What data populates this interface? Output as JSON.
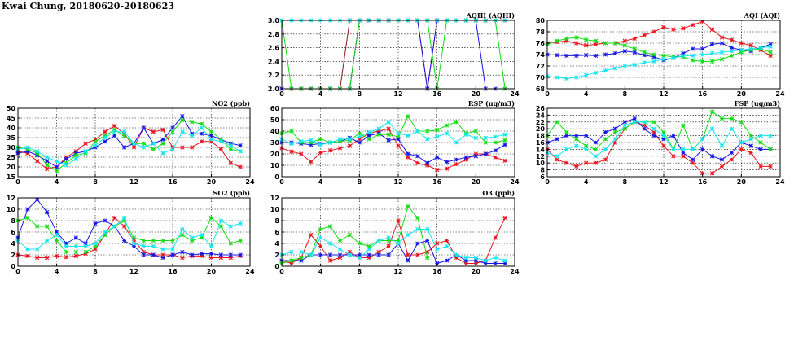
{
  "title": "Kwai Chung, 20180620-20180623",
  "colors": {
    "red": "#e8141e",
    "blue": "#1414e6",
    "green": "#14dc14",
    "cyan": "#14e6f0",
    "darkred": "#8b1a1a"
  },
  "chart_data": [
    {
      "id": "no2",
      "type": "line",
      "title": "NO2 (ppb)",
      "xlim": [
        0,
        24
      ],
      "ylim": [
        15,
        50
      ],
      "xticks": [
        0,
        4,
        8,
        12,
        16,
        20,
        24
      ],
      "yticks": [
        15,
        20,
        25,
        30,
        35,
        40,
        45,
        50
      ],
      "grid": true,
      "series": [
        {
          "color": "red",
          "values": [
            28,
            27,
            23,
            19,
            20,
            25,
            28,
            32,
            34,
            38,
            41,
            37,
            30,
            40,
            38,
            39,
            30,
            30,
            30,
            33,
            33,
            29,
            22,
            20
          ]
        },
        {
          "color": "blue",
          "values": [
            27,
            28,
            26,
            23,
            20,
            24,
            27,
            28,
            30,
            33,
            36,
            30,
            32,
            40,
            32,
            34,
            40,
            46,
            37,
            37,
            36,
            34,
            32,
            31
          ]
        },
        {
          "color": "green",
          "values": [
            30,
            29,
            27,
            21,
            18,
            22,
            26,
            27,
            33,
            36,
            39,
            36,
            32,
            32,
            29,
            32,
            38,
            44,
            43,
            42,
            38,
            34,
            29,
            28
          ]
        },
        {
          "color": "cyan",
          "values": [
            29,
            30,
            28,
            25,
            23,
            21,
            24,
            28,
            31,
            35,
            38,
            38,
            32,
            30,
            32,
            27,
            29,
            38,
            36,
            40,
            34,
            33,
            31,
            28
          ]
        }
      ]
    },
    {
      "id": "so2",
      "type": "line",
      "title": "SO2 (ppb)",
      "xlim": [
        0,
        24
      ],
      "ylim": [
        0,
        12
      ],
      "xticks": [
        0,
        4,
        8,
        12,
        16,
        20,
        24
      ],
      "yticks": [
        0,
        2,
        4,
        6,
        8,
        10,
        12
      ],
      "grid": true,
      "series": [
        {
          "color": "red",
          "values": [
            2,
            1.8,
            1.5,
            1.5,
            1.8,
            1.6,
            1.8,
            2.2,
            3,
            5.5,
            8.5,
            7,
            4.5,
            2.5,
            2,
            2,
            2,
            1.5,
            1.8,
            1.8,
            1.5,
            1.5,
            1.5,
            1.8
          ]
        },
        {
          "color": "blue",
          "values": [
            5,
            10,
            11.7,
            9.5,
            6,
            4,
            5,
            4,
            7.5,
            8,
            7,
            4.5,
            3.5,
            2,
            2,
            1.5,
            2,
            2.5,
            2,
            2.2,
            2.2,
            2,
            2,
            2
          ]
        },
        {
          "color": "green",
          "values": [
            8,
            8.5,
            7,
            7,
            4.5,
            2.5,
            2.5,
            2.5,
            3.5,
            5.5,
            7,
            8,
            5,
            4.5,
            4.5,
            4.5,
            4.5,
            5.5,
            4.5,
            5,
            8.5,
            7,
            4,
            4.5
          ]
        },
        {
          "color": "cyan",
          "values": [
            4.5,
            3,
            3,
            4.5,
            5.5,
            3.5,
            3.5,
            3.5,
            4,
            6,
            7,
            8.5,
            4,
            3.5,
            3.5,
            3,
            3,
            6.5,
            5,
            5.5,
            3.5,
            8,
            7,
            7.5
          ]
        }
      ]
    },
    {
      "id": "aqhi",
      "type": "line",
      "title": "AQHI (AQHI)",
      "xlim": [
        0,
        24
      ],
      "ylim": [
        2.0,
        3.0
      ],
      "xticks": [
        0,
        4,
        8,
        12,
        16,
        20,
        24
      ],
      "yticks": [
        2.0,
        2.2,
        2.4,
        2.6,
        2.8,
        3.0
      ],
      "grid": true,
      "series": [
        {
          "color": "red",
          "values": [
            2,
            2,
            2,
            2,
            2,
            2,
            2,
            2,
            3,
            3,
            3,
            3,
            3,
            3,
            3,
            2,
            3,
            3,
            3,
            3,
            3,
            3,
            3,
            3
          ]
        },
        {
          "color": "darkred",
          "values": [
            2,
            2,
            2,
            2,
            2,
            2,
            2,
            3,
            3,
            3,
            3,
            3,
            3,
            3,
            3,
            3,
            3,
            3,
            3,
            3,
            3,
            3,
            3,
            3
          ]
        },
        {
          "color": "blue",
          "values": [
            2,
            2,
            2,
            2,
            2,
            2,
            2,
            2,
            3,
            3,
            3,
            3,
            3,
            3,
            3,
            2,
            3,
            3,
            3,
            3,
            3,
            2,
            2,
            2
          ]
        },
        {
          "color": "green",
          "values": [
            3,
            2,
            2,
            2,
            2,
            2,
            2,
            2,
            3,
            3,
            3,
            3,
            3,
            3,
            3,
            3,
            2,
            3,
            3,
            3,
            3,
            3,
            3,
            2
          ]
        },
        {
          "color": "cyan",
          "values": [
            3,
            3,
            3,
            3,
            3,
            3,
            3,
            3,
            3,
            3,
            3,
            3,
            3,
            3,
            3,
            3,
            3,
            3,
            3,
            3,
            3,
            3,
            3,
            3
          ]
        }
      ]
    },
    {
      "id": "rsp",
      "type": "line",
      "title": "RSP (ug/m3)",
      "xlim": [
        0,
        24
      ],
      "ylim": [
        0,
        60
      ],
      "xticks": [
        0,
        4,
        8,
        12,
        16,
        20,
        24
      ],
      "yticks": [
        0,
        10,
        20,
        30,
        40,
        50,
        60
      ],
      "grid": true,
      "series": [
        {
          "color": "red",
          "values": [
            25,
            22,
            20,
            13,
            21,
            23,
            25,
            27,
            33,
            38,
            40,
            42,
            27,
            17,
            12,
            10,
            6,
            7,
            11,
            15,
            20,
            20,
            17,
            14
          ]
        },
        {
          "color": "blue",
          "values": [
            30,
            30,
            29,
            28,
            29,
            30,
            31,
            34,
            30,
            36,
            38,
            32,
            33,
            20,
            18,
            12,
            17,
            13,
            15,
            17,
            18,
            20,
            23,
            28
          ]
        },
        {
          "color": "green",
          "values": [
            38,
            40,
            30,
            30,
            33,
            30,
            31,
            32,
            38,
            33,
            37,
            37,
            35,
            53,
            40,
            40,
            41,
            45,
            48,
            38,
            40,
            30,
            30,
            32
          ]
        },
        {
          "color": "cyan",
          "values": [
            33,
            29,
            31,
            32,
            28,
            30,
            33,
            33,
            35,
            39,
            42,
            48,
            38,
            36,
            40,
            33,
            35,
            38,
            30,
            37,
            34,
            34,
            35,
            37
          ]
        }
      ]
    },
    {
      "id": "o3",
      "type": "line",
      "title": "O3 (ppb)",
      "xlim": [
        0,
        24
      ],
      "ylim": [
        0,
        12
      ],
      "xticks": [
        0,
        4,
        8,
        12,
        16,
        20,
        24
      ],
      "yticks": [
        0,
        2,
        4,
        6,
        8,
        10,
        12
      ],
      "grid": true,
      "series": [
        {
          "color": "red",
          "values": [
            1,
            0.5,
            1.5,
            5.5,
            3.5,
            1,
            1.5,
            2.5,
            1.5,
            1.5,
            2.5,
            3.5,
            8,
            2,
            2,
            2.5,
            4,
            4.5,
            1.5,
            0.5,
            0.5,
            1,
            5,
            8.5
          ]
        },
        {
          "color": "blue",
          "values": [
            1,
            1,
            1,
            2,
            2,
            2,
            2,
            2,
            2,
            2,
            2,
            2,
            4,
            1,
            4,
            4.5,
            0.5,
            1,
            2,
            1,
            1,
            0.5,
            0.5,
            0.5
          ]
        },
        {
          "color": "green",
          "values": [
            0.5,
            1,
            1.5,
            2,
            6.5,
            7,
            4.5,
            5.5,
            4,
            3.5,
            4.5,
            4.5,
            4.5,
            10.5,
            8.5,
            1.5,
            null,
            null,
            null,
            null,
            null,
            null,
            null,
            null
          ]
        },
        {
          "color": "cyan",
          "values": [
            2,
            2.5,
            2.5,
            2,
            5,
            4,
            3,
            2,
            1.5,
            3,
            4.5,
            5,
            4,
            5.5,
            6.5,
            6.5,
            3,
            3.5,
            2,
            1.5,
            1.5,
            1,
            1.5,
            1
          ]
        }
      ]
    },
    {
      "id": "aqi",
      "type": "line",
      "title": "AQI (AQI)",
      "xlim": [
        0,
        24
      ],
      "ylim": [
        68,
        80
      ],
      "xticks": [
        0,
        4,
        8,
        12,
        16,
        20,
        24
      ],
      "yticks": [
        68,
        70,
        72,
        74,
        76,
        78,
        80
      ],
      "grid": true,
      "series": [
        {
          "color": "red",
          "values": [
            76,
            76.2,
            76.4,
            76,
            75.6,
            75.8,
            76,
            76,
            76.4,
            76.8,
            77.4,
            78,
            78.8,
            78.4,
            78.6,
            79.2,
            79.8,
            78.4,
            77,
            76.6,
            76,
            75.6,
            74.8,
            73.8
          ]
        },
        {
          "color": "blue",
          "values": [
            74,
            73.9,
            73.8,
            73.8,
            73.9,
            73.8,
            74,
            74.2,
            74.6,
            74.4,
            73.9,
            73.6,
            73,
            73.4,
            74.2,
            75,
            75,
            75.8,
            76,
            75.2,
            74.8,
            74.6,
            75.2,
            75.8
          ]
        },
        {
          "color": "green",
          "values": [
            75.8,
            76.4,
            76.8,
            77,
            76.6,
            76.4,
            76,
            76,
            75.6,
            75,
            74.4,
            74,
            73.8,
            73.6,
            73.6,
            73,
            72.8,
            72.8,
            73.2,
            73.8,
            74.4,
            74.8,
            75,
            74.4
          ]
        },
        {
          "color": "cyan",
          "values": [
            70.2,
            70,
            69.8,
            70,
            70.4,
            70.8,
            71.2,
            71.6,
            72,
            72.2,
            72.6,
            72.8,
            73.2,
            73.4,
            73.8,
            73.8,
            74,
            74.2,
            74.4,
            74.6,
            74.8,
            75,
            75.2,
            75.4
          ]
        }
      ]
    },
    {
      "id": "fsp",
      "type": "line",
      "title": "FSP (ug/m3)",
      "xlim": [
        0,
        24
      ],
      "ylim": [
        6,
        26
      ],
      "xticks": [
        0,
        4,
        8,
        12,
        16,
        20,
        24
      ],
      "yticks": [
        6,
        8,
        10,
        12,
        14,
        16,
        18,
        20,
        22,
        24,
        26
      ],
      "grid": true,
      "series": [
        {
          "color": "red",
          "values": [
            14,
            11,
            10,
            9,
            10,
            10,
            11,
            16,
            20,
            22,
            21,
            19,
            15,
            12,
            12,
            10,
            7,
            7,
            9,
            11,
            14,
            13,
            9,
            9
          ]
        },
        {
          "color": "blue",
          "values": [
            16,
            17,
            18,
            18,
            18,
            16,
            19,
            20,
            22,
            23,
            20,
            18,
            17,
            18,
            13,
            11,
            14,
            12,
            11,
            13,
            16,
            15,
            14,
            14
          ]
        },
        {
          "color": "green",
          "values": [
            18,
            22,
            19,
            17,
            15,
            14,
            17,
            19,
            20,
            22,
            22,
            22,
            19,
            14,
            21,
            14,
            17,
            25,
            23,
            23,
            22,
            18,
            16,
            14
          ]
        },
        {
          "color": "cyan",
          "values": [
            13,
            12,
            14,
            15,
            14,
            12,
            14,
            17,
            21,
            22,
            22,
            20,
            18,
            14,
            14,
            14,
            17,
            20,
            15,
            20,
            16,
            17,
            18,
            18
          ]
        }
      ]
    }
  ]
}
